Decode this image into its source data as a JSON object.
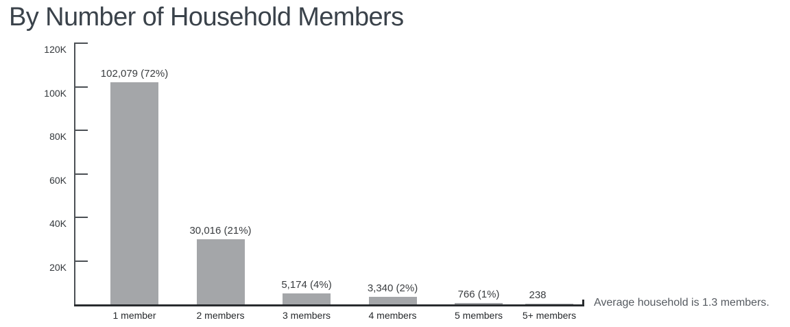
{
  "annotation": "Average household is 1.3 members.",
  "colors": {
    "background": "#ffffff",
    "bar": "#a4a6a9",
    "title": "#3a424a",
    "axis": "#4b4f54",
    "baseline": "#282b2e",
    "tick_label": "#33373b",
    "data_label": "#3a3d40",
    "category_label": "#26292c",
    "annotation": "#555a60"
  },
  "chart_data": {
    "type": "bar",
    "title": "By Number of Household Members",
    "categories": [
      "1 member",
      "2 members",
      "3 members",
      "4 members",
      "5 members",
      "5+ members"
    ],
    "values": [
      102079,
      30016,
      5174,
      3340,
      766,
      238
    ],
    "data_labels": [
      "102,079 (72%)",
      "30,016 (21%)",
      "5,174 (4%)",
      "3,340 (2%)",
      "766 (1%)",
      "238"
    ],
    "xlabel": "",
    "ylabel": "",
    "ylim": [
      0,
      120000
    ],
    "yticks": [
      {
        "value": 20000,
        "label": "20K"
      },
      {
        "value": 40000,
        "label": "40K"
      },
      {
        "value": 60000,
        "label": "60K"
      },
      {
        "value": 80000,
        "label": "80K"
      },
      {
        "value": 100000,
        "label": "100K"
      },
      {
        "value": 120000,
        "label": "120K"
      }
    ],
    "grid": false,
    "legend": false,
    "bar_color": "#a4a6a9",
    "annotation": "Average household is 1.3 members."
  }
}
